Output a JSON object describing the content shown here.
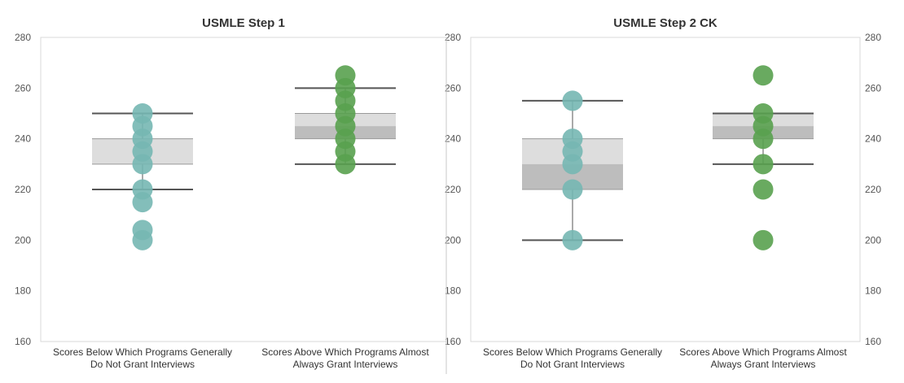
{
  "colors": {
    "below": "#76b7b2",
    "above": "#59a14f",
    "box_upper": "#dddddd",
    "box_lower": "#bdbdbd",
    "whisker": "#555555",
    "frame": "#d9d9d9",
    "separator": "#c8c8c8"
  },
  "chart_data": [
    {
      "type": "scatter",
      "subtype": "box-and-dot",
      "title": "USMLE Step 1",
      "ylim": [
        160,
        280
      ],
      "yticks": [
        160,
        180,
        200,
        220,
        240,
        260,
        280
      ],
      "ytick_side": "left",
      "grid": false,
      "categories": [
        "Scores Below Which Programs Generally\nDo Not Grant Interviews",
        "Scores Above Which Programs Almost\nAlways Grant Interviews"
      ],
      "series": [
        {
          "color_key": "below",
          "points": [
            200,
            204,
            215,
            220,
            230,
            235,
            240,
            245,
            250
          ],
          "box": {
            "whisker_low": 220,
            "q1": 230,
            "median": 230,
            "q3": 240,
            "whisker_high": 250
          }
        },
        {
          "color_key": "above",
          "points": [
            230,
            235,
            240,
            245,
            250,
            255,
            260,
            265
          ],
          "box": {
            "whisker_low": 230,
            "q1": 240,
            "median": 245,
            "q3": 250,
            "whisker_high": 260
          }
        }
      ]
    },
    {
      "type": "scatter",
      "subtype": "box-and-dot",
      "title": "USMLE Step 2 CK",
      "ylim": [
        160,
        280
      ],
      "yticks": [
        160,
        180,
        200,
        220,
        240,
        260,
        280
      ],
      "ytick_side": "both",
      "grid": false,
      "categories": [
        "Scores Below Which Programs Generally\nDo Not Grant Interviews",
        "Scores Above Which Programs Almost\nAlways Grant Interviews"
      ],
      "series": [
        {
          "color_key": "below",
          "points": [
            200,
            220,
            230,
            235,
            240,
            255
          ],
          "box": {
            "whisker_low": 200,
            "q1": 220,
            "median": 230,
            "q3": 240,
            "whisker_high": 255
          }
        },
        {
          "color_key": "above",
          "points": [
            200,
            220,
            230,
            240,
            245,
            250,
            265
          ],
          "box": {
            "whisker_low": 230,
            "q1": 240,
            "median": 245,
            "q3": 250,
            "whisker_high": 250
          }
        }
      ]
    }
  ]
}
